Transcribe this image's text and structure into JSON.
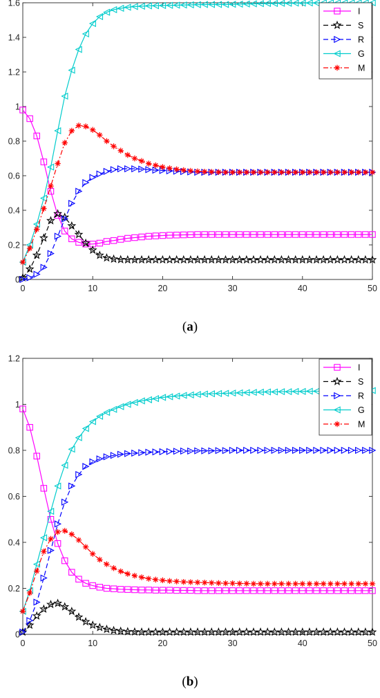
{
  "captions": {
    "a_pre": "(",
    "a_letter": "a",
    "a_post": ")",
    "b_pre": "(",
    "b_letter": "b",
    "b_post": ")"
  },
  "chart_data": [
    {
      "type": "line",
      "panel": "(a)",
      "xlim": [
        0,
        50
      ],
      "ylim": [
        0,
        1.6
      ],
      "xticks": [
        0,
        10,
        20,
        30,
        40,
        50
      ],
      "yticks": [
        0,
        0.2,
        0.4,
        0.6,
        0.8,
        1,
        1.2,
        1.4,
        1.6
      ],
      "ytick_labels": [
        "0",
        "0.2",
        "0.4",
        "0.6",
        "0.8",
        "1",
        "1.2",
        "1.4",
        "1.6"
      ],
      "grid": false,
      "legend_position": "top-right",
      "x": [
        0,
        1,
        2,
        3,
        4,
        5,
        6,
        7,
        8,
        9,
        10,
        11,
        12,
        13,
        14,
        15,
        16,
        17,
        18,
        19,
        20,
        21,
        22,
        23,
        24,
        25,
        26,
        27,
        28,
        29,
        30,
        31,
        32,
        33,
        34,
        35,
        36,
        37,
        38,
        39,
        40,
        41,
        42,
        43,
        44,
        45,
        46,
        47,
        48,
        49,
        50
      ],
      "series": [
        {
          "name": "I",
          "color": "#ff00ff",
          "dash": "solid",
          "marker": "square",
          "values": [
            0.98,
            0.93,
            0.83,
            0.68,
            0.51,
            0.37,
            0.28,
            0.235,
            0.215,
            0.205,
            0.205,
            0.21,
            0.22,
            0.225,
            0.232,
            0.238,
            0.242,
            0.246,
            0.25,
            0.252,
            0.254,
            0.256,
            0.257,
            0.258,
            0.259,
            0.26,
            0.26,
            0.26,
            0.26,
            0.26,
            0.26,
            0.26,
            0.26,
            0.26,
            0.26,
            0.26,
            0.26,
            0.26,
            0.26,
            0.26,
            0.26,
            0.26,
            0.26,
            0.26,
            0.26,
            0.26,
            0.26,
            0.26,
            0.26,
            0.26,
            0.26
          ]
        },
        {
          "name": "S",
          "color": "#000000",
          "dash": "dashed",
          "marker": "star",
          "values": [
            0.01,
            0.06,
            0.14,
            0.24,
            0.34,
            0.38,
            0.36,
            0.31,
            0.26,
            0.21,
            0.17,
            0.14,
            0.125,
            0.118,
            0.115,
            0.114,
            0.114,
            0.114,
            0.114,
            0.114,
            0.114,
            0.114,
            0.114,
            0.114,
            0.114,
            0.114,
            0.114,
            0.114,
            0.114,
            0.114,
            0.114,
            0.114,
            0.114,
            0.114,
            0.114,
            0.114,
            0.114,
            0.114,
            0.114,
            0.114,
            0.114,
            0.114,
            0.114,
            0.114,
            0.114,
            0.114,
            0.114,
            0.114,
            0.114,
            0.114,
            0.114
          ]
        },
        {
          "name": "R",
          "color": "#0000ff",
          "dash": "dashed",
          "marker": "triangle-right",
          "values": [
            0.0,
            0.01,
            0.03,
            0.07,
            0.15,
            0.25,
            0.35,
            0.44,
            0.51,
            0.56,
            0.59,
            0.61,
            0.625,
            0.635,
            0.64,
            0.64,
            0.64,
            0.638,
            0.635,
            0.632,
            0.63,
            0.628,
            0.626,
            0.624,
            0.622,
            0.62,
            0.62,
            0.62,
            0.62,
            0.62,
            0.62,
            0.62,
            0.62,
            0.62,
            0.62,
            0.62,
            0.62,
            0.62,
            0.62,
            0.62,
            0.62,
            0.62,
            0.62,
            0.62,
            0.62,
            0.62,
            0.62,
            0.62,
            0.62,
            0.62,
            0.62
          ]
        },
        {
          "name": "G",
          "color": "#00cccc",
          "dash": "solid",
          "marker": "triangle-left",
          "values": [
            0.1,
            0.2,
            0.32,
            0.47,
            0.65,
            0.86,
            1.06,
            1.21,
            1.33,
            1.42,
            1.48,
            1.52,
            1.545,
            1.56,
            1.568,
            1.574,
            1.578,
            1.58,
            1.582,
            1.583,
            1.584,
            1.585,
            1.586,
            1.587,
            1.588,
            1.589,
            1.59,
            1.59,
            1.59,
            1.59,
            1.591,
            1.592,
            1.593,
            1.594,
            1.595,
            1.596,
            1.596,
            1.597,
            1.597,
            1.598,
            1.598,
            1.599,
            1.599,
            1.6,
            1.6,
            1.6,
            1.6,
            1.6,
            1.6,
            1.6,
            1.6
          ]
        },
        {
          "name": "M",
          "color": "#ff0000",
          "dash": "dashdot",
          "marker": "asterisk",
          "values": [
            0.1,
            0.18,
            0.29,
            0.41,
            0.54,
            0.67,
            0.79,
            0.86,
            0.89,
            0.885,
            0.865,
            0.835,
            0.8,
            0.77,
            0.745,
            0.72,
            0.7,
            0.685,
            0.67,
            0.66,
            0.65,
            0.643,
            0.637,
            0.632,
            0.628,
            0.625,
            0.623,
            0.622,
            0.621,
            0.62,
            0.62,
            0.62,
            0.62,
            0.62,
            0.62,
            0.62,
            0.62,
            0.62,
            0.62,
            0.62,
            0.62,
            0.62,
            0.62,
            0.62,
            0.62,
            0.62,
            0.62,
            0.62,
            0.62,
            0.62,
            0.62
          ]
        }
      ]
    },
    {
      "type": "line",
      "panel": "(b)",
      "xlim": [
        0,
        50
      ],
      "ylim": [
        0,
        1.2
      ],
      "xticks": [
        0,
        10,
        20,
        30,
        40,
        50
      ],
      "yticks": [
        0,
        0.2,
        0.4,
        0.6,
        0.8,
        1,
        1.2
      ],
      "ytick_labels": [
        "0",
        "0.2",
        "0.4",
        "0.6",
        "0.8",
        "1",
        "1.2"
      ],
      "grid": false,
      "legend_position": "top-right",
      "x": [
        0,
        1,
        2,
        3,
        4,
        5,
        6,
        7,
        8,
        9,
        10,
        11,
        12,
        13,
        14,
        15,
        16,
        17,
        18,
        19,
        20,
        21,
        22,
        23,
        24,
        25,
        26,
        27,
        28,
        29,
        30,
        31,
        32,
        33,
        34,
        35,
        36,
        37,
        38,
        39,
        40,
        41,
        42,
        43,
        44,
        45,
        46,
        47,
        48,
        49,
        50
      ],
      "series": [
        {
          "name": "I",
          "color": "#ff00ff",
          "dash": "solid",
          "marker": "square",
          "values": [
            0.98,
            0.9,
            0.775,
            0.635,
            0.5,
            0.395,
            0.32,
            0.27,
            0.24,
            0.222,
            0.212,
            0.205,
            0.2,
            0.198,
            0.196,
            0.195,
            0.194,
            0.193,
            0.193,
            0.192,
            0.192,
            0.192,
            0.191,
            0.191,
            0.191,
            0.19,
            0.19,
            0.19,
            0.19,
            0.19,
            0.19,
            0.19,
            0.19,
            0.19,
            0.19,
            0.19,
            0.19,
            0.19,
            0.19,
            0.19,
            0.19,
            0.19,
            0.19,
            0.19,
            0.19,
            0.19,
            0.19,
            0.19,
            0.19,
            0.19,
            0.19
          ]
        },
        {
          "name": "S",
          "color": "#000000",
          "dash": "dashed",
          "marker": "star",
          "values": [
            0.01,
            0.04,
            0.08,
            0.11,
            0.13,
            0.135,
            0.12,
            0.1,
            0.075,
            0.055,
            0.04,
            0.03,
            0.022,
            0.017,
            0.014,
            0.012,
            0.011,
            0.01,
            0.01,
            0.01,
            0.01,
            0.01,
            0.01,
            0.01,
            0.01,
            0.01,
            0.01,
            0.01,
            0.01,
            0.01,
            0.01,
            0.01,
            0.01,
            0.01,
            0.01,
            0.01,
            0.01,
            0.01,
            0.01,
            0.01,
            0.01,
            0.01,
            0.01,
            0.01,
            0.01,
            0.01,
            0.01,
            0.01,
            0.01,
            0.01,
            0.01
          ]
        },
        {
          "name": "R",
          "color": "#0000ff",
          "dash": "dashed",
          "marker": "triangle-right",
          "values": [
            0.01,
            0.06,
            0.14,
            0.245,
            0.365,
            0.48,
            0.575,
            0.645,
            0.695,
            0.73,
            0.75,
            0.763,
            0.772,
            0.778,
            0.783,
            0.786,
            0.788,
            0.79,
            0.792,
            0.793,
            0.794,
            0.795,
            0.796,
            0.797,
            0.797,
            0.798,
            0.798,
            0.798,
            0.799,
            0.799,
            0.8,
            0.8,
            0.8,
            0.8,
            0.8,
            0.8,
            0.8,
            0.8,
            0.8,
            0.8,
            0.8,
            0.8,
            0.8,
            0.8,
            0.8,
            0.8,
            0.8,
            0.8,
            0.8,
            0.8,
            0.8
          ]
        },
        {
          "name": "G",
          "color": "#00cccc",
          "dash": "solid",
          "marker": "triangle-left",
          "values": [
            0.1,
            0.19,
            0.305,
            0.42,
            0.535,
            0.645,
            0.735,
            0.805,
            0.855,
            0.895,
            0.925,
            0.948,
            0.965,
            0.978,
            0.99,
            1.0,
            1.008,
            1.015,
            1.02,
            1.025,
            1.03,
            1.033,
            1.036,
            1.039,
            1.041,
            1.043,
            1.045,
            1.046,
            1.047,
            1.048,
            1.049,
            1.05,
            1.051,
            1.052,
            1.053,
            1.054,
            1.054,
            1.055,
            1.055,
            1.056,
            1.056,
            1.057,
            1.057,
            1.058,
            1.058,
            1.058,
            1.059,
            1.059,
            1.059,
            1.06,
            1.06
          ]
        },
        {
          "name": "M",
          "color": "#ff0000",
          "dash": "dashdot",
          "marker": "asterisk",
          "values": [
            0.1,
            0.18,
            0.275,
            0.36,
            0.415,
            0.445,
            0.45,
            0.435,
            0.41,
            0.38,
            0.35,
            0.325,
            0.305,
            0.288,
            0.274,
            0.263,
            0.255,
            0.248,
            0.242,
            0.238,
            0.235,
            0.232,
            0.23,
            0.228,
            0.227,
            0.226,
            0.225,
            0.224,
            0.223,
            0.222,
            0.222,
            0.221,
            0.221,
            0.22,
            0.22,
            0.22,
            0.22,
            0.22,
            0.22,
            0.22,
            0.22,
            0.22,
            0.22,
            0.22,
            0.22,
            0.22,
            0.22,
            0.22,
            0.22,
            0.22,
            0.22
          ]
        }
      ]
    }
  ]
}
